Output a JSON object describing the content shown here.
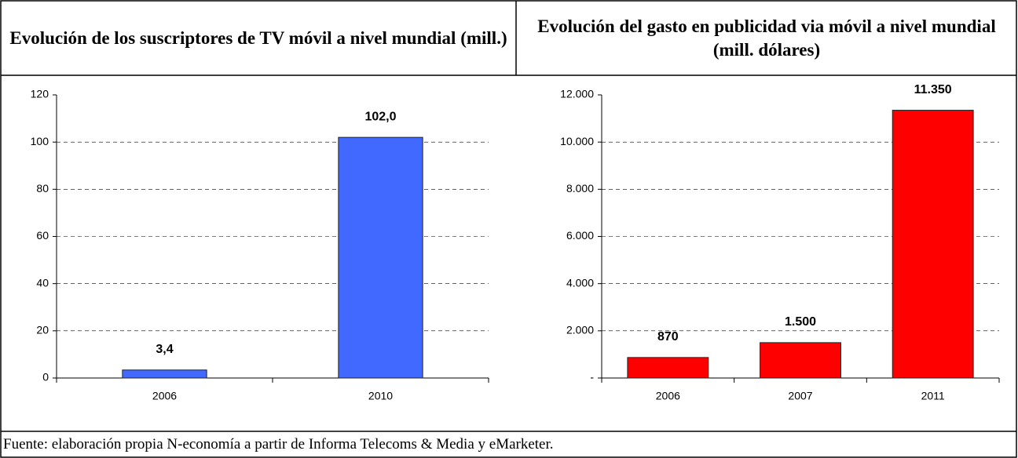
{
  "chart_data": [
    {
      "type": "bar",
      "title": "Evolución de los suscriptores de TV móvil a nivel mundial (mill.)",
      "categories": [
        "2006",
        "2010"
      ],
      "values": [
        3.4,
        102.0
      ],
      "value_labels": [
        "3,4",
        "102,0"
      ],
      "color": "#4169ff",
      "ylim": [
        0,
        120
      ],
      "yticks": [
        0,
        20,
        40,
        60,
        80,
        100,
        120
      ],
      "grid": true
    },
    {
      "type": "bar",
      "title": "Evolución del gasto en publicidad via móvil a nivel mundial (mill. dólares)",
      "categories": [
        "2006",
        "2007",
        "2011"
      ],
      "values": [
        870,
        1500,
        11350
      ],
      "value_labels": [
        "870",
        "1.500",
        "11.350"
      ],
      "color": "#ff0000",
      "ylim": [
        0,
        12000
      ],
      "yticks": [
        {
          "value": 0,
          "label": "-"
        },
        {
          "value": 2000,
          "label": "2.000"
        },
        {
          "value": 4000,
          "label": "4.000"
        },
        {
          "value": 6000,
          "label": "6.000"
        },
        {
          "value": 8000,
          "label": "8.000"
        },
        {
          "value": 10000,
          "label": "10.000"
        },
        {
          "value": 12000,
          "label": "12.000"
        }
      ],
      "grid": true
    }
  ],
  "source": "Fuente: elaboración propia N-economía a partir de Informa Telecoms & Media y eMarketer."
}
